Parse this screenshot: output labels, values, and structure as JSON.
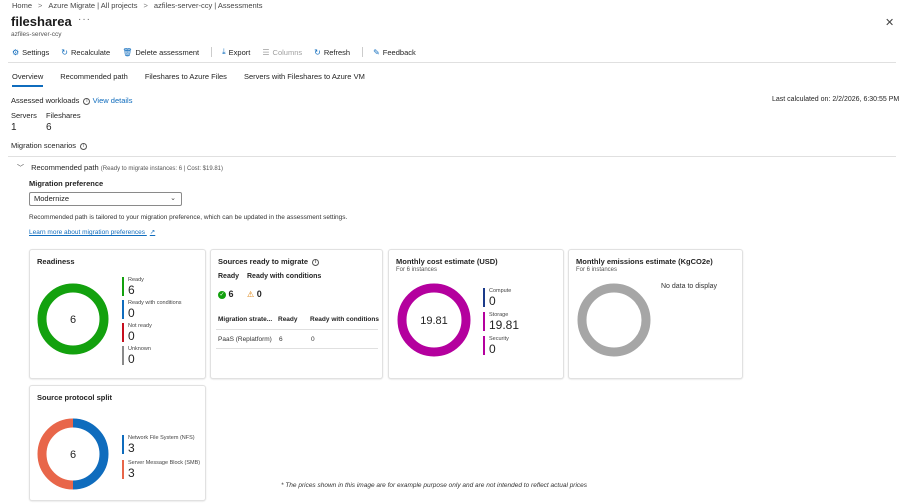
{
  "breadcrumb": [
    "Home",
    "Azure Migrate | All projects",
    "azfiles-server-ccy | Assessments"
  ],
  "title": "filesharea",
  "more": "···",
  "subtitle": "azfiles-server-ccy",
  "close": "✕",
  "toolbar": {
    "settings": "Settings",
    "recalculate": "Recalculate",
    "delete": "Delete assessment",
    "export": "Export",
    "columns": "Columns",
    "refresh": "Refresh",
    "feedback": "Feedback"
  },
  "tabs": [
    "Overview",
    "Recommended path",
    "Fileshares to Azure Files",
    "Servers with Fileshares to Azure VM"
  ],
  "assessed": {
    "label": "Assessed workloads",
    "view_details": "View details",
    "last_calculated": "Last calculated on: 2/2/2026, 6:30:55 PM",
    "servers_label": "Servers",
    "servers_value": "1",
    "fileshares_label": "Fileshares",
    "fileshares_value": "6"
  },
  "migration_scenarios": "Migration scenarios",
  "recommended": {
    "title": "Recommended path",
    "detail": "(Ready to migrate instances: 6 | Cost: $19.81)",
    "pref_label": "Migration preference",
    "pref_value": "Modernize",
    "description": "Recommended path is tailored to your migration preference, which can be updated in the assessment settings.",
    "learn_more": "Learn more about migration preferences"
  },
  "readiness": {
    "title": "Readiness",
    "center": "6",
    "legend": [
      {
        "label": "Ready",
        "value": "6",
        "color": "#13a10e"
      },
      {
        "label": "Ready with conditions",
        "value": "0",
        "color": "#0f6cbd"
      },
      {
        "label": "Not ready",
        "value": "0",
        "color": "#c50f1f"
      },
      {
        "label": "Unknown",
        "value": "0",
        "color": "#8a8a8a"
      }
    ]
  },
  "sources": {
    "title": "Sources ready to migrate",
    "ready_label": "Ready",
    "ready_value": "6",
    "cond_label": "Ready with conditions",
    "cond_value": "0",
    "table_headers": [
      "Migration strate...",
      "Ready",
      "Ready with conditions"
    ],
    "rows": [
      [
        "PaaS (Replatform)",
        "6",
        "0"
      ]
    ]
  },
  "cost": {
    "title": "Monthly cost estimate (USD)",
    "sub": "For 6 instances",
    "center": "19.81",
    "legend": [
      {
        "label": "Compute",
        "value": "0",
        "color": "#1b3a8a"
      },
      {
        "label": "Storage",
        "value": "19.81",
        "color": "#b4009e"
      },
      {
        "label": "Security",
        "value": "0",
        "color": "#b4009e"
      }
    ]
  },
  "emissions": {
    "title": "Monthly emissions estimate (KgCO2e)",
    "sub": "For 6 instances",
    "no_data": "No data to display"
  },
  "protocol": {
    "title": "Source protocol split",
    "center": "6",
    "legend": [
      {
        "label": "Network File System (NFS)",
        "value": "3",
        "color": "#0f6cbd"
      },
      {
        "label": "Server Message Block (SMB)",
        "value": "3",
        "color": "#e8664a"
      }
    ]
  },
  "footnote": "* The prices shown in this image are for example purpose only and are not intended to reflect actual prices"
}
